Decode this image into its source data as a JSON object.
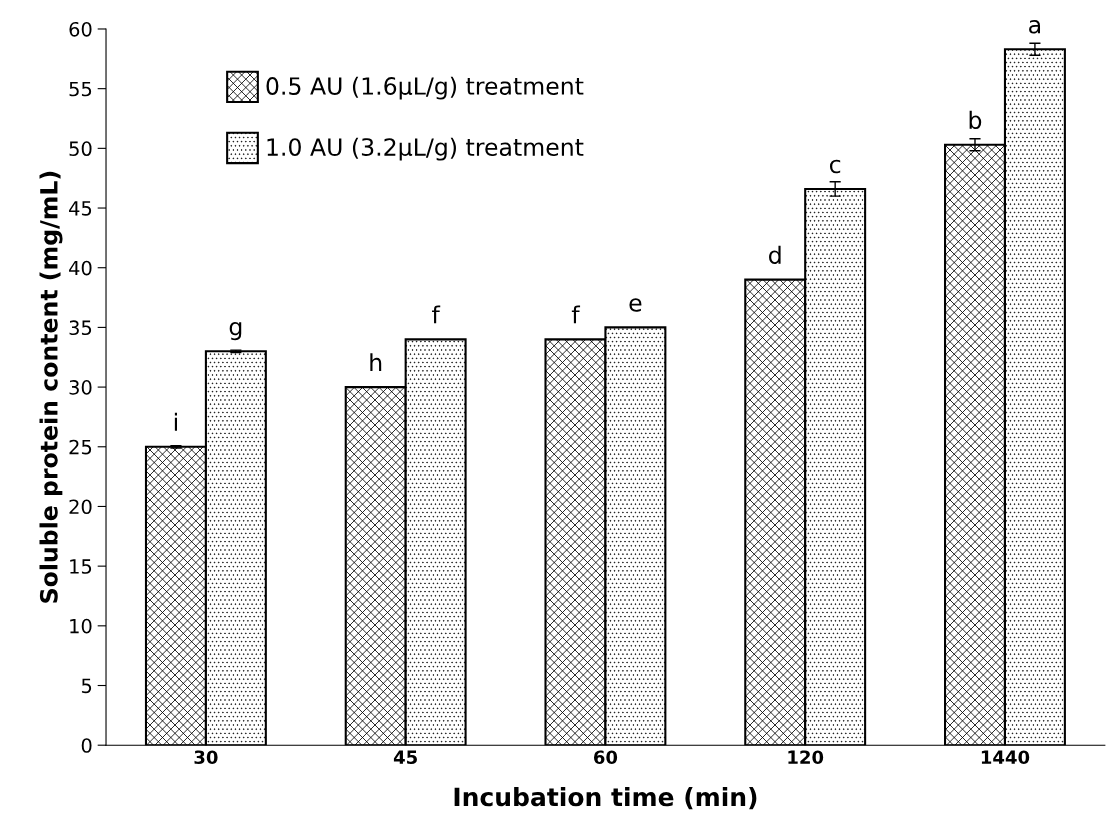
{
  "chart_data": {
    "type": "bar",
    "xlabel": "Incubation time (min)",
    "ylabel": "Soluble protein content (mg/mL)",
    "categories": [
      "30",
      "45",
      "60",
      "120",
      "1440"
    ],
    "series": [
      {
        "name": "0.5 AU (1.6μL/g) treatment",
        "color": "#000000",
        "values": [
          25,
          30,
          34,
          39,
          50.3
        ],
        "errors": [
          0.1,
          null,
          null,
          null,
          0.5
        ]
      },
      {
        "name": "1.0 AU (3.2μL/g) treatment",
        "color": "#000000",
        "values": [
          33,
          34,
          35,
          46.6,
          58.3
        ],
        "errors": [
          0.1,
          null,
          null,
          0.6,
          0.5
        ]
      }
    ],
    "ylim": [
      0,
      60
    ],
    "yticks": [
      0,
      5,
      10,
      15,
      20,
      25,
      30,
      35,
      40,
      45,
      50,
      55,
      60
    ],
    "grid": false,
    "legend": "top left",
    "annotations": [
      {
        "text": "i",
        "x": "30",
        "y": 25
      },
      {
        "text": "g",
        "x": "30",
        "y": 33
      },
      {
        "text": "h",
        "x": "45",
        "y": 30
      },
      {
        "text": "f",
        "x": "45",
        "y": 34
      },
      {
        "text": "f",
        "x": "60",
        "y": 34
      },
      {
        "text": "e",
        "x": "60",
        "y": 35
      },
      {
        "text": "d",
        "x": "120",
        "y": 39
      },
      {
        "text": "c",
        "x": "120",
        "y": 46.6
      },
      {
        "text": "b",
        "x": "1440",
        "y": 50.3
      },
      {
        "text": "a",
        "x": "1440",
        "y": 58.3
      }
    ]
  }
}
